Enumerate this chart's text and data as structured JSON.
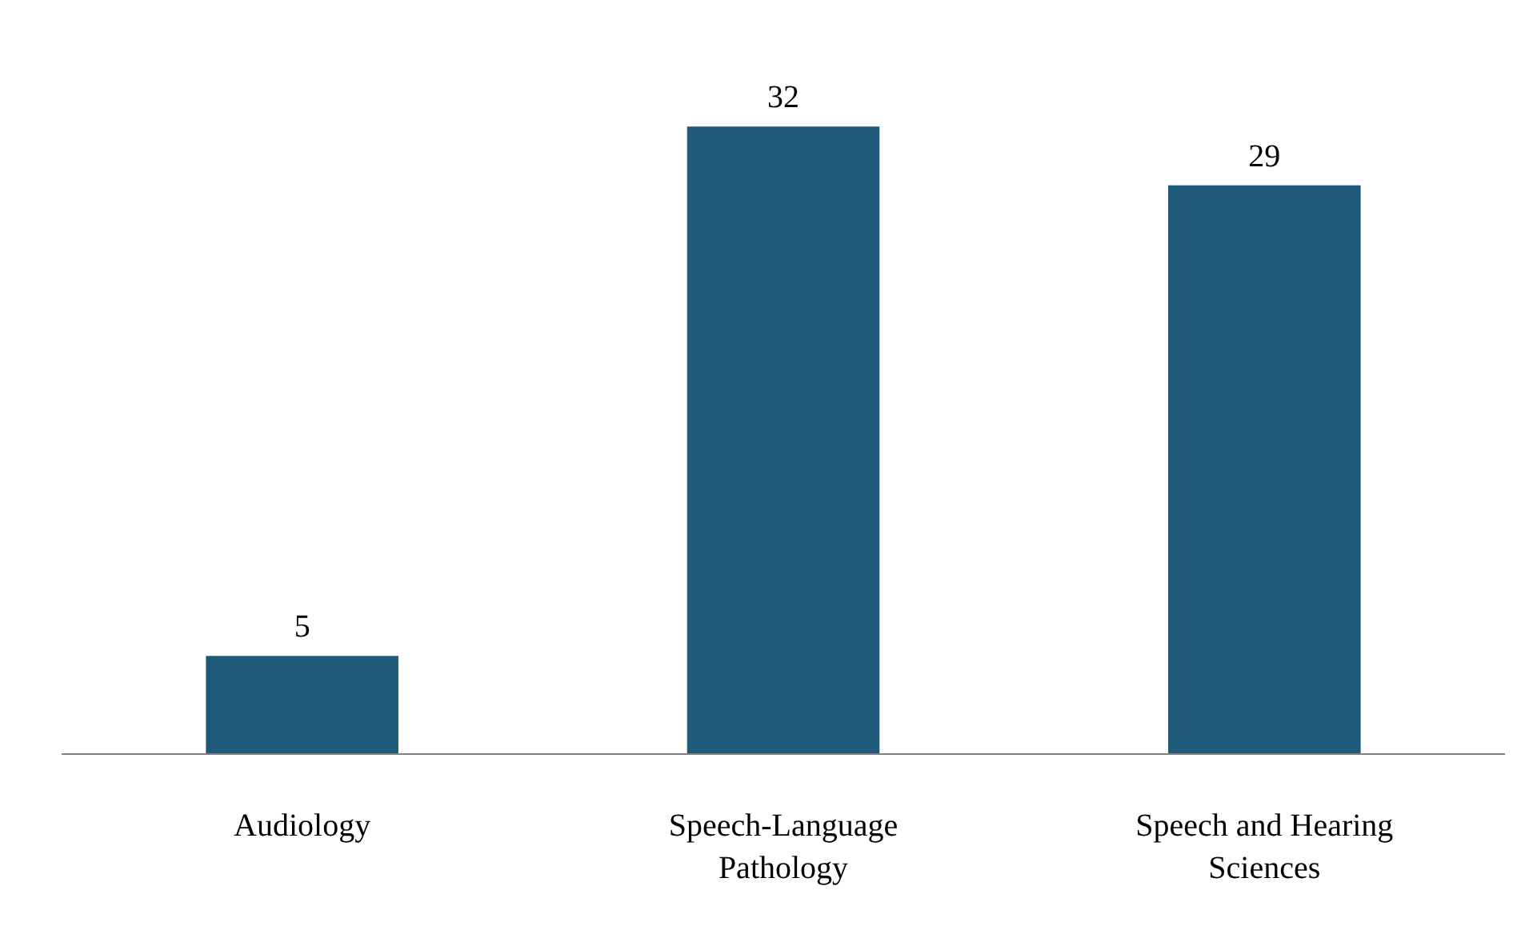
{
  "chart_data": {
    "type": "bar",
    "categories": [
      "Audiology",
      "Speech-Language Pathology",
      "Speech and Hearing Sciences"
    ],
    "values": [
      5,
      32,
      29
    ],
    "color": "#1f5a7a",
    "data_labels": true
  }
}
